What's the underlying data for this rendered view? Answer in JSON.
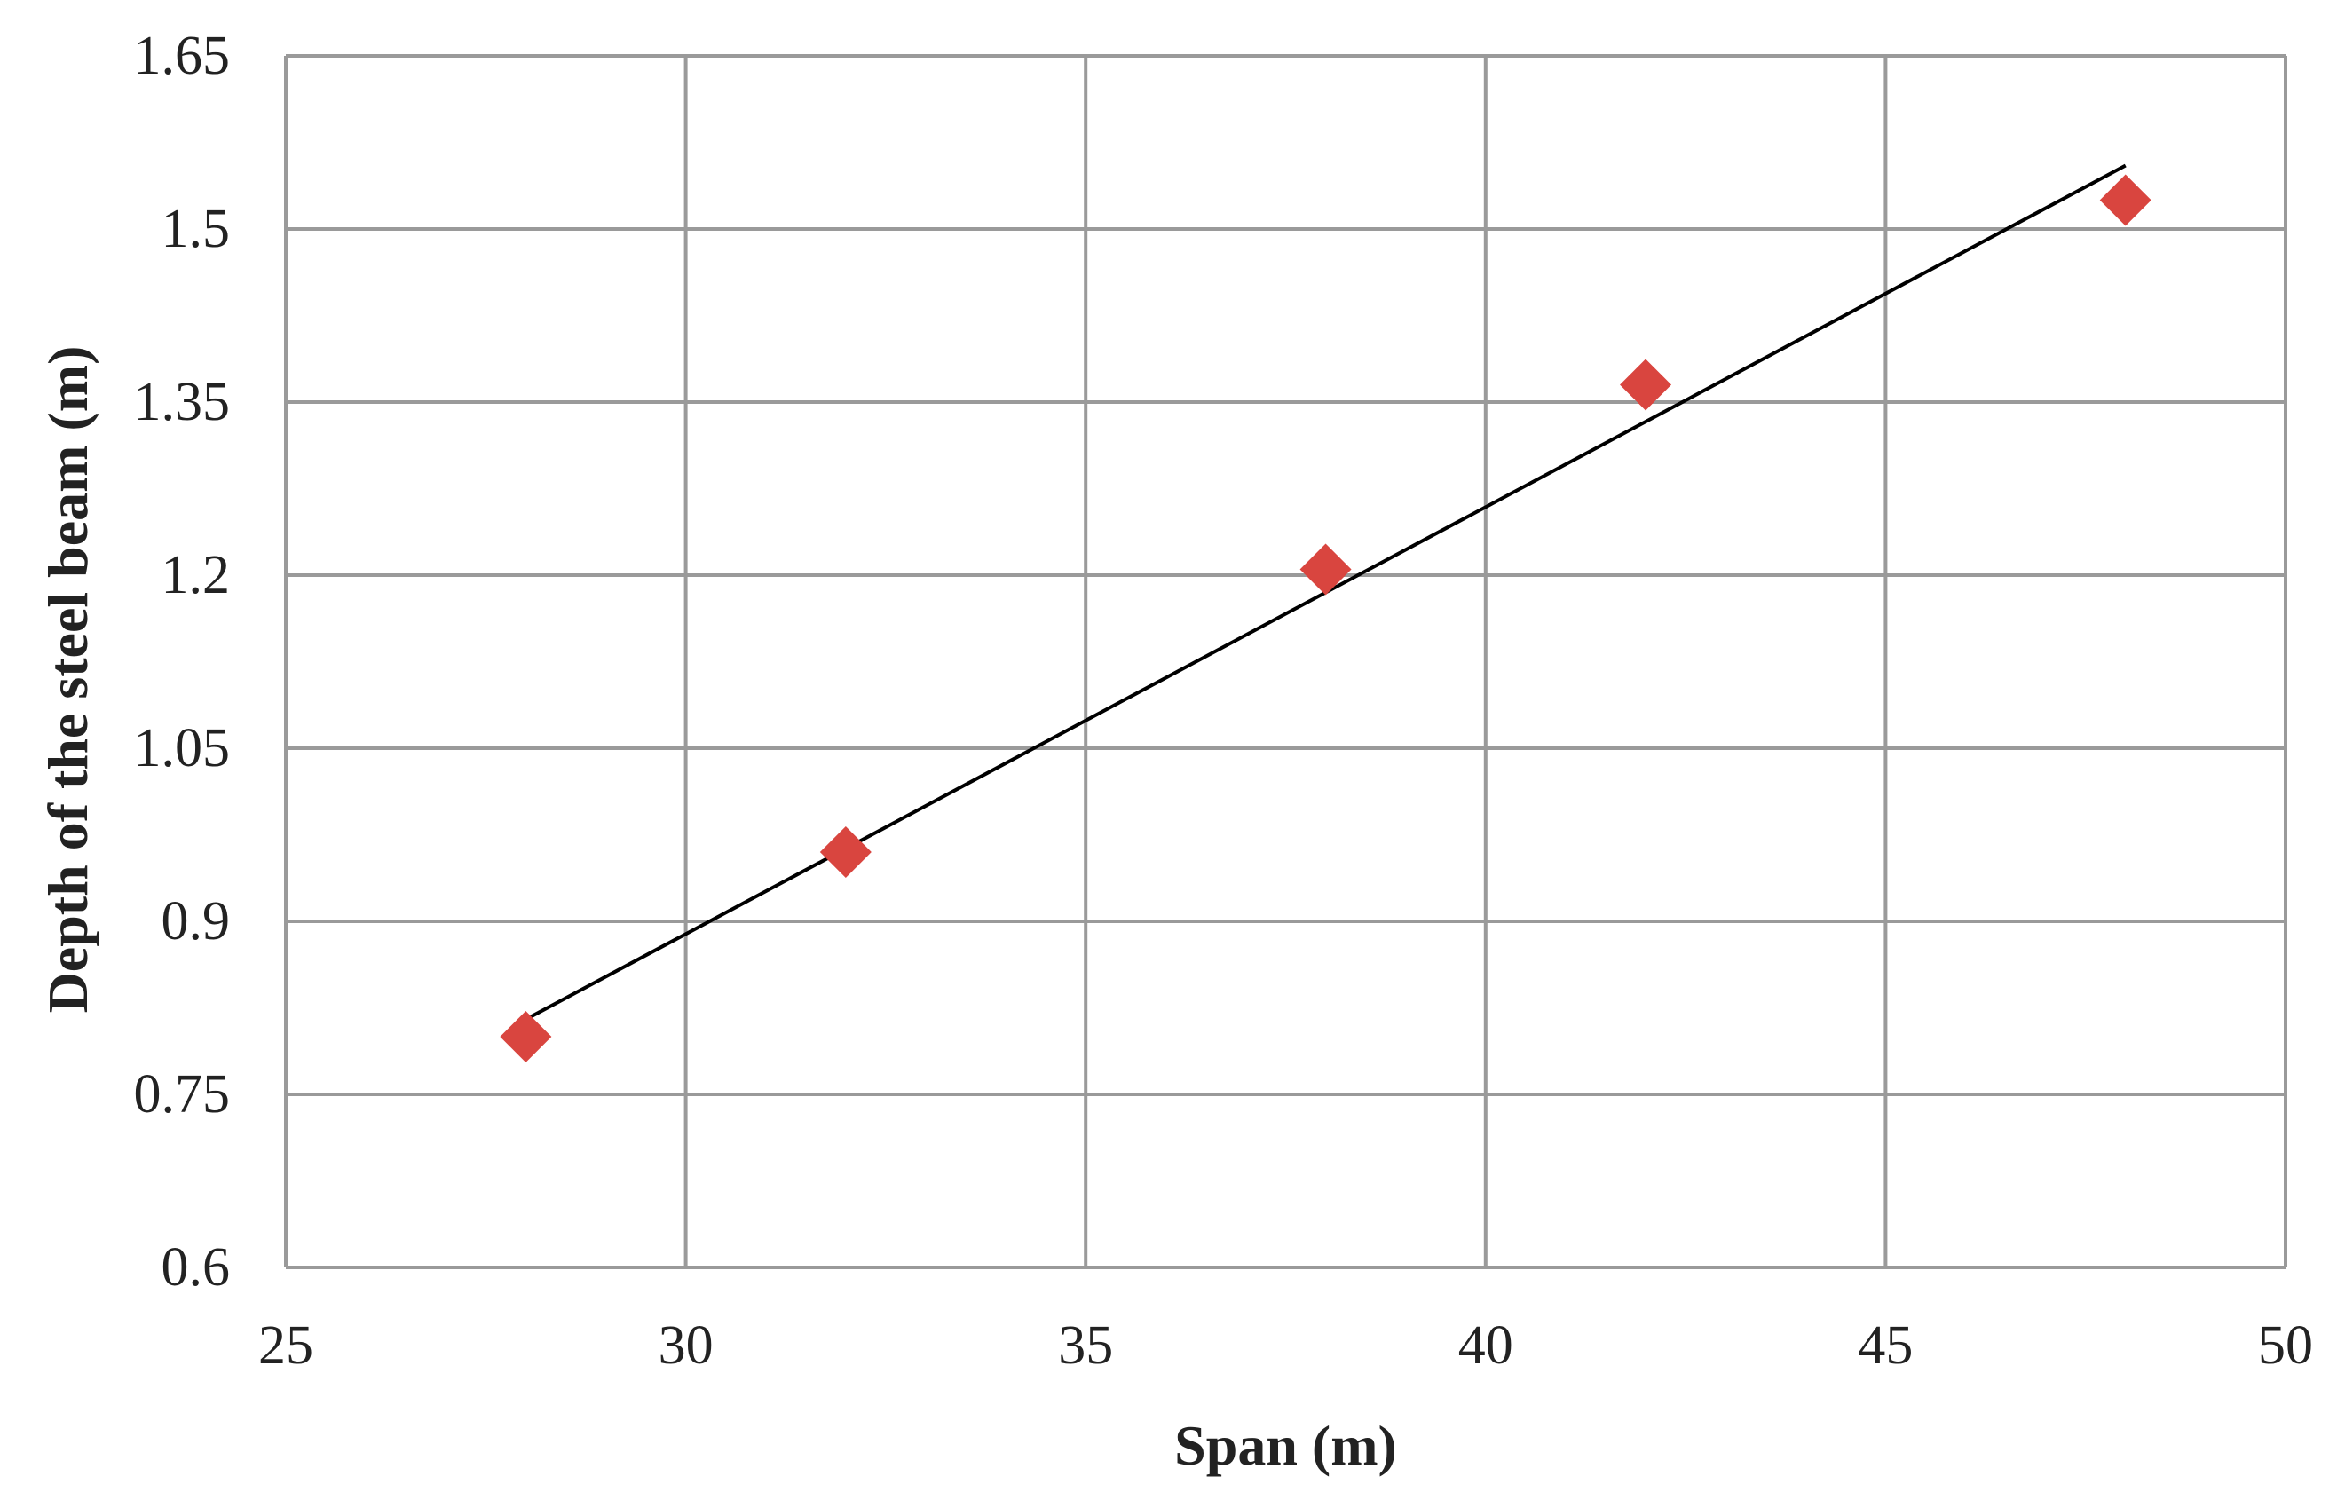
{
  "chart_data": {
    "type": "scatter",
    "title": "",
    "xlabel": "Span (m)",
    "ylabel": "Depth of the steel beam (m)",
    "xlim": [
      25,
      50
    ],
    "ylim": [
      0.6,
      1.65
    ],
    "xticks": [
      25,
      30,
      35,
      40,
      45,
      50
    ],
    "yticks": [
      0.6,
      0.75,
      0.9,
      1.05,
      1.2,
      1.35,
      1.5,
      1.65
    ],
    "x_tick_labels": [
      "25",
      "30",
      "35",
      "40",
      "45",
      "50"
    ],
    "y_tick_labels": [
      "0.6",
      "0.75",
      "0.9",
      "1.05",
      "1.2",
      "1.35",
      "1.5",
      "1.65"
    ],
    "grid": true,
    "legend": "none",
    "series": [
      {
        "marker": "diamond",
        "color": "#d9453f",
        "points": [
          {
            "x": 28,
            "y": 0.8
          },
          {
            "x": 32,
            "y": 0.96
          },
          {
            "x": 38,
            "y": 1.205
          },
          {
            "x": 42,
            "y": 1.365
          },
          {
            "x": 48,
            "y": 1.525
          }
        ]
      }
    ],
    "trendline": {
      "type": "linear",
      "color": "#000000",
      "x_range": [
        28,
        48
      ],
      "y_values": [
        0.815,
        1.555
      ]
    }
  }
}
